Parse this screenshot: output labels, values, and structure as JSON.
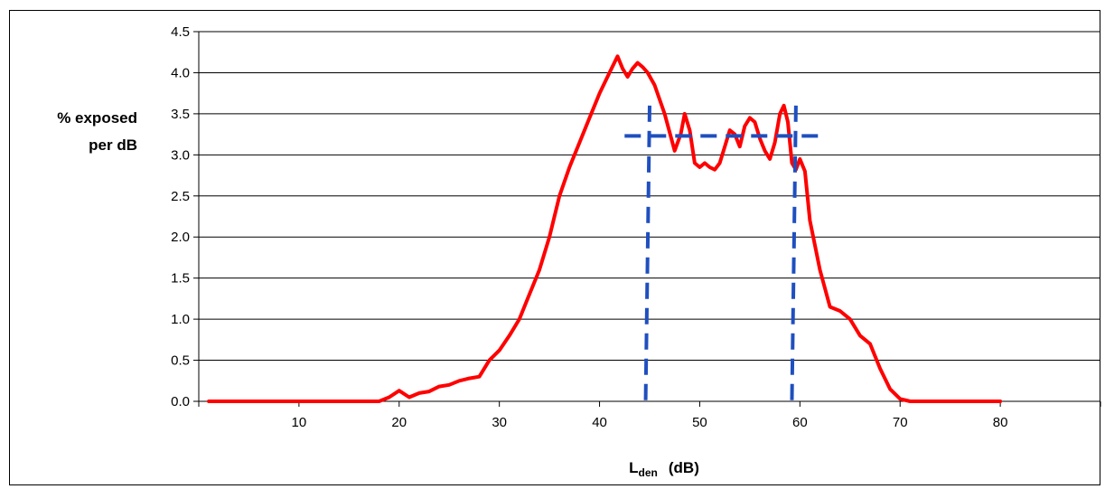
{
  "chart_data": {
    "type": "line",
    "ylabel_line1": "% exposed",
    "ylabel_line2": "per dB",
    "xlabel_main": "L",
    "xlabel_sub": "den",
    "xlabel_unit": "(dB)",
    "ylim": [
      0,
      4.5
    ],
    "xlim": [
      0,
      90
    ],
    "grid": true,
    "y_ticks": [
      "0.0",
      "0.5",
      "1.0",
      "1.5",
      "2.0",
      "2.5",
      "3.0",
      "3.5",
      "4.0",
      "4.5"
    ],
    "x_ticks": [
      "10",
      "20",
      "30",
      "40",
      "50",
      "60",
      "70",
      "80"
    ],
    "series": [
      {
        "color": "#ff0000",
        "x": [
          1,
          18,
          19,
          20,
          21,
          22,
          23,
          24,
          25,
          26,
          27,
          28,
          29,
          30,
          31,
          32,
          33,
          34,
          35,
          36,
          37,
          38,
          39,
          40,
          41,
          41.8,
          42.3,
          42.8,
          43.3,
          43.8,
          44.3,
          44.8,
          45.5,
          46.5,
          47.5,
          48.1,
          48.5,
          49,
          49.5,
          50,
          50.5,
          51,
          51.5,
          52,
          52.5,
          53,
          53.5,
          54,
          54.5,
          55,
          55.5,
          56,
          56.5,
          57,
          57.5,
          58,
          58.4,
          58.8,
          59.2,
          59.6,
          60,
          60.5,
          61,
          62,
          63,
          64,
          65,
          66,
          67,
          68,
          69,
          70,
          71,
          72,
          80
        ],
        "y": [
          0.0,
          0.0,
          0.05,
          0.13,
          0.05,
          0.1,
          0.12,
          0.18,
          0.2,
          0.25,
          0.28,
          0.3,
          0.5,
          0.62,
          0.8,
          1.0,
          1.3,
          1.6,
          2.0,
          2.5,
          2.85,
          3.15,
          3.45,
          3.75,
          4.0,
          4.2,
          4.05,
          3.95,
          4.05,
          4.12,
          4.07,
          4.0,
          3.85,
          3.5,
          3.05,
          3.25,
          3.5,
          3.3,
          2.9,
          2.85,
          2.9,
          2.85,
          2.82,
          2.9,
          3.1,
          3.3,
          3.25,
          3.1,
          3.35,
          3.45,
          3.4,
          3.2,
          3.05,
          2.95,
          3.15,
          3.5,
          3.6,
          3.4,
          2.9,
          2.82,
          2.95,
          2.8,
          2.2,
          1.6,
          1.15,
          1.1,
          1.0,
          0.8,
          0.7,
          0.4,
          0.15,
          0.03,
          0.0,
          0.0,
          0.0
        ]
      }
    ],
    "markers": {
      "color": "#1f4fbf",
      "vertical_lines": [
        {
          "x_top": 45,
          "x_bottom": 44.6,
          "y_top": 3.6,
          "y_bottom": 0.0
        },
        {
          "x_top": 59.6,
          "x_bottom": 59.2,
          "y_top": 3.6,
          "y_bottom": 0.0
        }
      ],
      "horizontal_line": {
        "x_start": 42.5,
        "x_end": 62.5,
        "y": 3.23
      }
    }
  }
}
